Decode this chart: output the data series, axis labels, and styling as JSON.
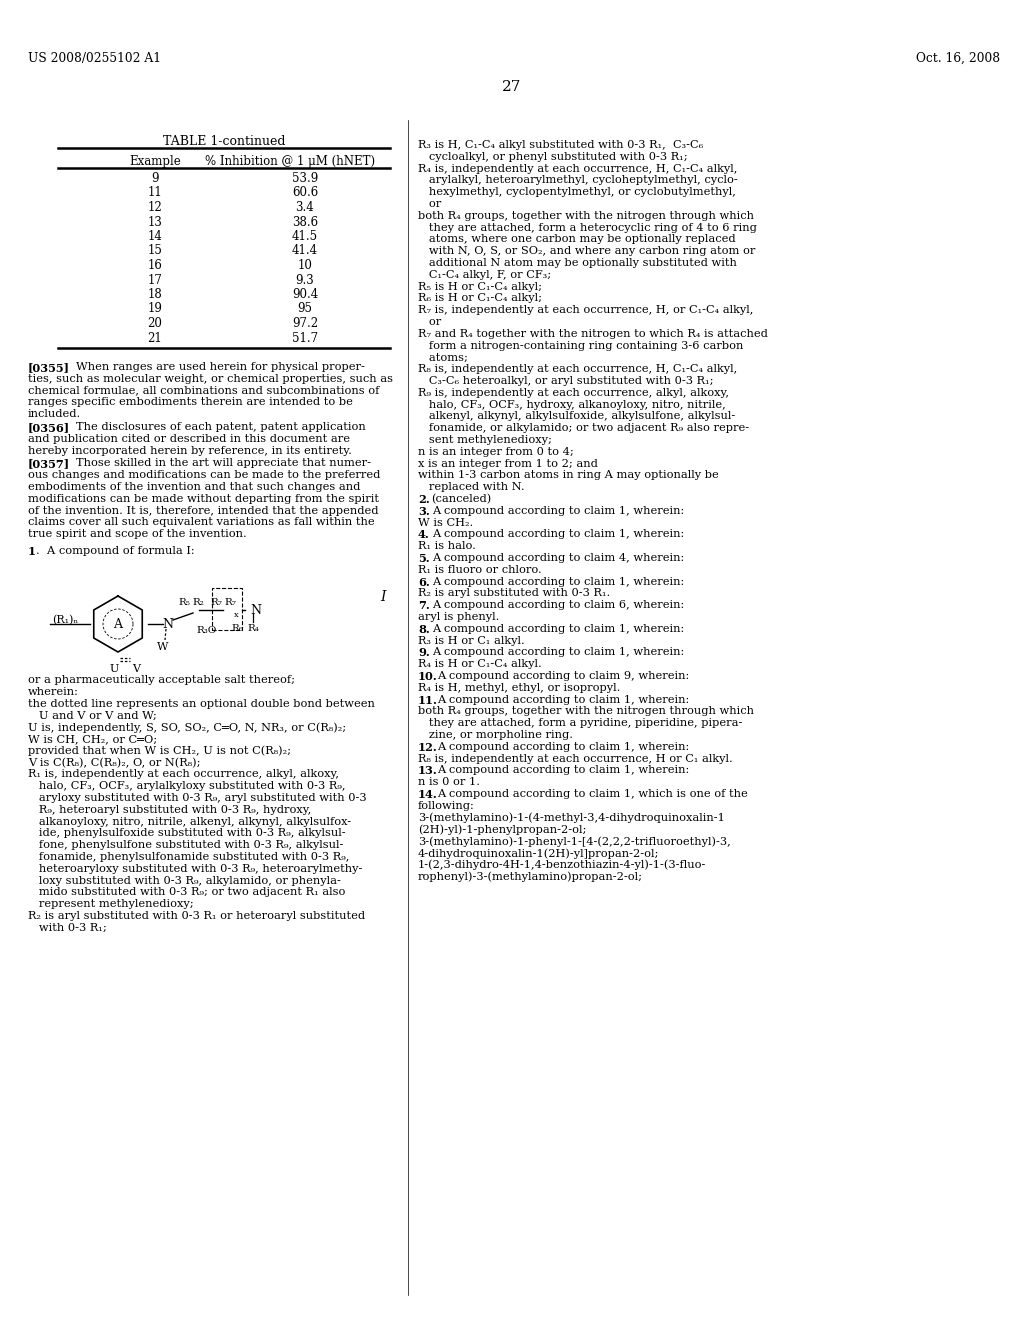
{
  "page_number": "27",
  "patent_number": "US 2008/0255102 A1",
  "patent_date": "Oct. 16, 2008",
  "background_color": "#ffffff",
  "text_color": "#000000",
  "table_title": "TABLE 1-continued",
  "table_col1": "Example",
  "table_col2": "% Inhibition @ 1 μM (hNET)",
  "table_data": [
    [
      "9",
      "53.9"
    ],
    [
      "11",
      "60.6"
    ],
    [
      "12",
      "3.4"
    ],
    [
      "13",
      "38.6"
    ],
    [
      "14",
      "41.5"
    ],
    [
      "15",
      "41.4"
    ],
    [
      "16",
      "10"
    ],
    [
      "17",
      "9.3"
    ],
    [
      "18",
      "90.4"
    ],
    [
      "19",
      "95"
    ],
    [
      "20",
      "97.2"
    ],
    [
      "21",
      "51.7"
    ]
  ],
  "left_paragraphs": [
    {
      "tag": "[0355]",
      "indent_text": "When ranges are used herein for physical proper-",
      "cont_lines": [
        "ties, such as molecular weight, or chemical properties, such as",
        "chemical formulae, all combinations and subcombinations of",
        "ranges specific embodiments therein are intended to be",
        "included."
      ]
    },
    {
      "tag": "[0356]",
      "indent_text": "The disclosures of each patent, patent application",
      "cont_lines": [
        "and publication cited or described in this document are",
        "hereby incorporated herein by reference, in its entirety."
      ]
    },
    {
      "tag": "[0357]",
      "indent_text": "Those skilled in the art will appreciate that numer-",
      "cont_lines": [
        "ous changes and modifications can be made to the preferred",
        "embodiments of the invention and that such changes and",
        "modifications can be made without departing from the spirit",
        "of the invention. It is, therefore, intended that the appended",
        "claims cover all such equivalent variations as fall within the",
        "true spirit and scope of the invention."
      ]
    }
  ],
  "left_claim_lines": [
    "or a pharmaceutically acceptable salt thereof;",
    "wherein:",
    "the dotted line represents an optional double bond between",
    "   U and V or V and W;",
    "U is, independently, S, SO, SO₂, C═O, N, NR₃, or C(R₈)₂;",
    "W is CH, CH₂, or C═O;",
    "provided that when W is CH₂, U is not C(R₈)₂;",
    "V is C(R₈), C(R₈)₂, O, or N(R₈);",
    "R₁ is, independently at each occurrence, alkyl, alkoxy,",
    "   halo, CF₃, OCF₃, arylalkyloxy substituted with 0-3 R₉,",
    "   aryloxy substituted with 0-3 R₉, aryl substituted with 0-3",
    "   R₉, heteroaryl substituted with 0-3 R₉, hydroxy,",
    "   alkanoyloxy, nitro, nitrile, alkenyl, alkynyl, alkylsulfox-",
    "   ide, phenylsulfoxide substituted with 0-3 R₉, alkylsul-",
    "   fone, phenylsulfone substituted with 0-3 R₉, alkylsul-",
    "   fonamide, phenylsulfonamide substituted with 0-3 R₉,",
    "   heteroaryloxy substituted with 0-3 R₉, heteroarylmethy-",
    "   loxy substituted with 0-3 R₉, alkylamido, or phenyla-",
    "   mido substituted with 0-3 R₉; or two adjacent R₁ also",
    "   represent methylenedioxy;",
    "R₂ is aryl substituted with 0-3 R₁ or heteroaryl substituted",
    "   with 0-3 R₁;"
  ],
  "right_col_lines": [
    {
      "text": "R₃ is H, C₁-C₄ alkyl substituted with 0-3 R₁,  C₃-C₆",
      "bold": false
    },
    {
      "text": "   cycloalkyl, or phenyl substituted with 0-3 R₁;",
      "bold": false
    },
    {
      "text": "R₄ is, independently at each occurrence, H, C₁-C₄ alkyl,",
      "bold": false
    },
    {
      "text": "   arylalkyl, heteroarylmethyl, cycloheptylmethyl, cyclo-",
      "bold": false
    },
    {
      "text": "   hexylmethyl, cyclopentylmethyl, or cyclobutylmethyl,",
      "bold": false
    },
    {
      "text": "   or",
      "bold": false
    },
    {
      "text": "both R₄ groups, together with the nitrogen through which",
      "bold": false
    },
    {
      "text": "   they are attached, form a heterocyclic ring of 4 to 6 ring",
      "bold": false
    },
    {
      "text": "   atoms, where one carbon may be optionally replaced",
      "bold": false
    },
    {
      "text": "   with N, O, S, or SO₂, and where any carbon ring atom or",
      "bold": false
    },
    {
      "text": "   additional N atom may be optionally substituted with",
      "bold": false
    },
    {
      "text": "   C₁-C₄ alkyl, F, or CF₃;",
      "bold": false
    },
    {
      "text": "R₅ is H or C₁-C₄ alkyl;",
      "bold": false
    },
    {
      "text": "R₆ is H or C₁-C₄ alkyl;",
      "bold": false
    },
    {
      "text": "R₇ is, independently at each occurrence, H, or C₁-C₄ alkyl,",
      "bold": false
    },
    {
      "text": "   or",
      "bold": false
    },
    {
      "text": "R₇ and R₄ together with the nitrogen to which R₄ is attached",
      "bold": false
    },
    {
      "text": "   form a nitrogen-containing ring containing 3-6 carbon",
      "bold": false
    },
    {
      "text": "   atoms;",
      "bold": false
    },
    {
      "text": "R₈ is, independently at each occurrence, H, C₁-C₄ alkyl,",
      "bold": false
    },
    {
      "text": "   C₃-C₆ heteroalkyl, or aryl substituted with 0-3 R₁;",
      "bold": false
    },
    {
      "text": "R₉ is, independently at each occurrence, alkyl, alkoxy,",
      "bold": false
    },
    {
      "text": "   halo, CF₃, OCF₃, hydroxy, alkanoyloxy, nitro, nitrile,",
      "bold": false
    },
    {
      "text": "   alkenyl, alkynyl, alkylsulfoxide, alkylsulfone, alkylsul-",
      "bold": false
    },
    {
      "text": "   fonamide, or alkylamido; or two adjacent R₉ also repre-",
      "bold": false
    },
    {
      "text": "   sent methylenedioxy;",
      "bold": false
    },
    {
      "text": "n is an integer from 0 to 4;",
      "bold": false
    },
    {
      "text": "x is an integer from 1 to 2; and",
      "bold": false
    },
    {
      "text": "within 1-3 carbon atoms in ring A may optionally be",
      "bold": false
    },
    {
      "text": "   replaced with N.",
      "bold": false
    },
    {
      "text": "2. (canceled)",
      "bold": false,
      "claim_num": "2."
    },
    {
      "text": "3. A compound according to claim 1, wherein:",
      "bold": false,
      "claim_num": "3."
    },
    {
      "text": "W is CH₂.",
      "bold": false
    },
    {
      "text": "4. A compound according to claim 1, wherein:",
      "bold": false,
      "claim_num": "4."
    },
    {
      "text": "R₁ is halo.",
      "bold": false
    },
    {
      "text": "5. A compound according to claim 4, wherein:",
      "bold": false,
      "claim_num": "5."
    },
    {
      "text": "R₁ is fluoro or chloro.",
      "bold": false
    },
    {
      "text": "6. A compound according to claim 1, wherein:",
      "bold": false,
      "claim_num": "6."
    },
    {
      "text": "R₂ is aryl substituted with 0-3 R₁.",
      "bold": false
    },
    {
      "text": "7. A compound according to claim 6, wherein:",
      "bold": false,
      "claim_num": "7."
    },
    {
      "text": "aryl is phenyl.",
      "bold": false
    },
    {
      "text": "8. A compound according to claim 1, wherein:",
      "bold": false,
      "claim_num": "8."
    },
    {
      "text": "R₃ is H or C₁ alkyl.",
      "bold": false
    },
    {
      "text": "9. A compound according to claim 1, wherein:",
      "bold": false,
      "claim_num": "9."
    },
    {
      "text": "R₄ is H or C₁-C₄ alkyl.",
      "bold": false
    },
    {
      "text": "10. A compound according to claim 9, wherein:",
      "bold": false,
      "claim_num": "10."
    },
    {
      "text": "R₄ is H, methyl, ethyl, or isopropyl.",
      "bold": false
    },
    {
      "text": "11. A compound according to claim 1, wherein:",
      "bold": false,
      "claim_num": "11."
    },
    {
      "text": "both R₄ groups, together with the nitrogen through which",
      "bold": false
    },
    {
      "text": "   they are attached, form a pyridine, piperidine, pipera-",
      "bold": false
    },
    {
      "text": "   zine, or morpholine ring.",
      "bold": false
    },
    {
      "text": "12. A compound according to claim 1, wherein:",
      "bold": false,
      "claim_num": "12."
    },
    {
      "text": "R₈ is, independently at each occurrence, H or C₁ alkyl.",
      "bold": false
    },
    {
      "text": "13. A compound according to claim 1, wherein:",
      "bold": false,
      "claim_num": "13."
    },
    {
      "text": "n is 0 or 1.",
      "bold": false
    },
    {
      "text": "14. A compound according to claim 1, which is one of the",
      "bold": false,
      "claim_num": "14."
    },
    {
      "text": "following:",
      "bold": false
    },
    {
      "text": "3-(methylamino)-1-(4-methyl-3,4-dihydroquinoxalin-1",
      "bold": false
    },
    {
      "text": "(2H)-yl)-1-phenylpropan-2-ol;",
      "bold": false
    },
    {
      "text": "3-(methylamino)-1-phenyl-1-[4-(2,2,2-trifluoroethyl)-3,",
      "bold": false
    },
    {
      "text": "4-dihydroquinoxalin-1(2H)-yl]propan-2-ol;",
      "bold": false
    },
    {
      "text": "1-(2,3-dihydro-4H-1,4-benzothiazin-4-yl)-1-(3-fluo-",
      "bold": false
    },
    {
      "text": "rophenyl)-3-(methylamino)propan-2-ol;",
      "bold": false
    }
  ]
}
